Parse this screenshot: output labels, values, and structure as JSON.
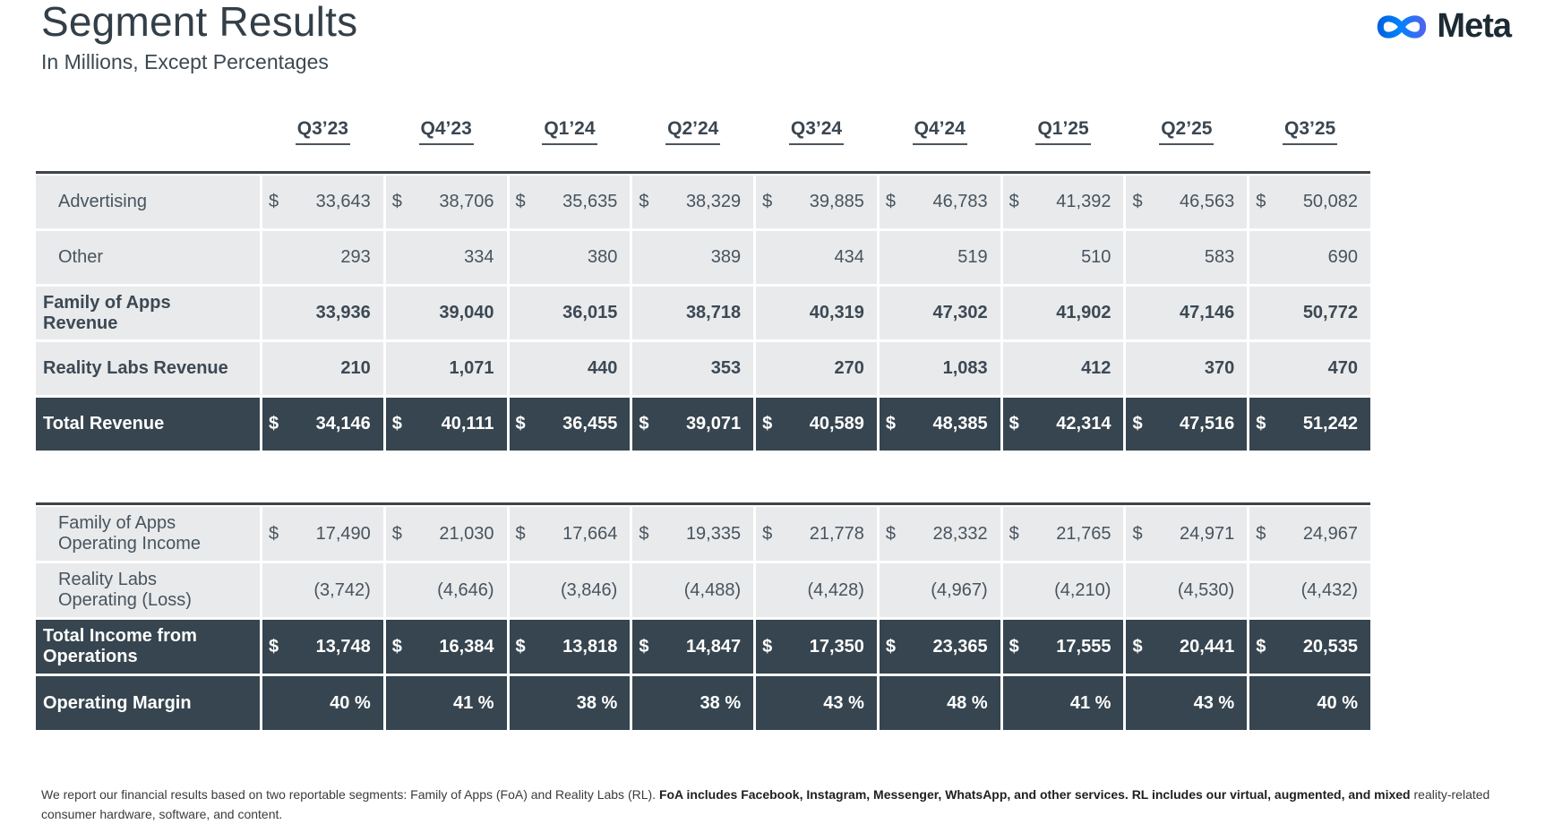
{
  "header": {
    "title": "Segment Results",
    "subtitle": "In Millions, Except Percentages",
    "logo_text": "Meta"
  },
  "chart_data": {
    "type": "table",
    "title": "Segment Results",
    "subtitle": "In Millions, Except Percentages",
    "unit": "USD millions, except percentages",
    "columns": [
      "Q3’23",
      "Q4’23",
      "Q1’24",
      "Q2’24",
      "Q3’24",
      "Q4’24",
      "Q1’25",
      "Q2’25",
      "Q3’25"
    ],
    "sections": [
      {
        "name": "revenue",
        "rows": [
          {
            "label": "Advertising",
            "tone": "light",
            "indent": true,
            "bold": false,
            "dollar": true,
            "values": [
              "33,643",
              "38,706",
              "35,635",
              "38,329",
              "39,885",
              "46,783",
              "41,392",
              "46,563",
              "50,082"
            ]
          },
          {
            "label": "Other",
            "tone": "light",
            "indent": true,
            "bold": false,
            "dollar": false,
            "values": [
              "293",
              "334",
              "380",
              "389",
              "434",
              "519",
              "510",
              "583",
              "690"
            ]
          },
          {
            "label": "Family of Apps\nRevenue",
            "tone": "light",
            "indent": false,
            "bold": true,
            "dollar": false,
            "values": [
              "33,936",
              "39,040",
              "36,015",
              "38,718",
              "40,319",
              "47,302",
              "41,902",
              "47,146",
              "50,772"
            ]
          },
          {
            "label": "Reality Labs Revenue",
            "tone": "light",
            "indent": false,
            "bold": true,
            "dollar": false,
            "values": [
              "210",
              "1,071",
              "440",
              "353",
              "270",
              "1,083",
              "412",
              "370",
              "470"
            ]
          },
          {
            "label": "Total Revenue",
            "tone": "dark",
            "indent": false,
            "bold": true,
            "dollar": true,
            "values": [
              "34,146",
              "40,111",
              "36,455",
              "39,071",
              "40,589",
              "48,385",
              "42,314",
              "47,516",
              "51,242"
            ]
          }
        ]
      },
      {
        "name": "operating",
        "rows": [
          {
            "label": "Family of Apps\nOperating Income",
            "tone": "light",
            "indent": true,
            "bold": false,
            "dollar": true,
            "values": [
              "17,490",
              "21,030",
              "17,664",
              "19,335",
              "21,778",
              "28,332",
              "21,765",
              "24,971",
              "24,967"
            ]
          },
          {
            "label": "Reality Labs\nOperating (Loss)",
            "tone": "light",
            "indent": true,
            "bold": false,
            "dollar": false,
            "values": [
              "(3,742)",
              "(4,646)",
              "(3,846)",
              "(4,488)",
              "(4,428)",
              "(4,967)",
              "(4,210)",
              "(4,530)",
              "(4,432)"
            ]
          },
          {
            "label": "Total Income from\nOperations",
            "tone": "dark",
            "indent": false,
            "bold": true,
            "dollar": true,
            "values": [
              "13,748",
              "16,384",
              "13,818",
              "14,847",
              "17,350",
              "23,365",
              "17,555",
              "20,441",
              "20,535"
            ]
          },
          {
            "label": "Operating Margin",
            "tone": "dark",
            "indent": false,
            "bold": true,
            "dollar": false,
            "values": [
              "40 %",
              "41 %",
              "38 %",
              "38 %",
              "43 %",
              "48 %",
              "41 %",
              "43 %",
              "40 %"
            ]
          }
        ]
      }
    ]
  },
  "footnote": {
    "normal": "We report our financial results based on two reportable segments: Family of Apps (FoA) and Reality Labs (RL).",
    "bold": "FoA includes Facebook, Instagram, Messenger, WhatsApp, and other services. RL includes our virtual, augmented, and mixed",
    "line2": "reality-related consumer hardware, software, and content."
  },
  "colors": {
    "light_row_bg": "#e9eaec",
    "dark_row_bg": "#36454f",
    "cell_text": "#47545e",
    "dark_row_text": "#ffffff",
    "title_text": "#333f48",
    "meta_wordmark": "#1c2b33",
    "meta_blue_start": "#0064e1",
    "meta_blue_end": "#0082fb",
    "rule": "#3f4449"
  }
}
